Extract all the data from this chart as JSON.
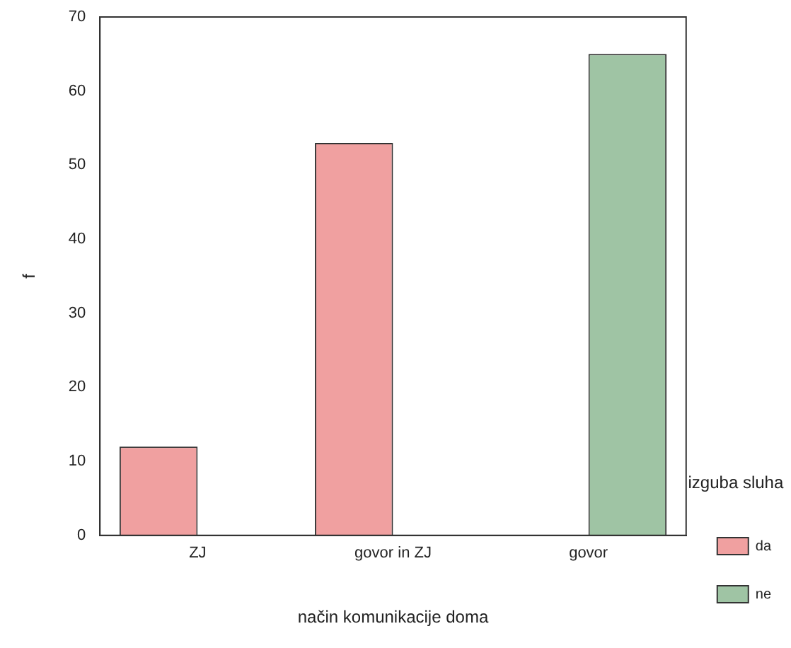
{
  "chart_data": {
    "type": "bar",
    "xlabel": "način komunikacije doma",
    "ylabel": "f",
    "legend_title": "izguba sluha",
    "legend": "right",
    "categories": [
      "ZJ",
      "govor in ZJ",
      "govor"
    ],
    "series": [
      {
        "name": "da",
        "color": "#f0a0a0",
        "values": [
          12,
          53,
          null
        ]
      },
      {
        "name": "ne",
        "color": "#9fc4a4",
        "values": [
          null,
          null,
          65
        ]
      }
    ],
    "ylim": [
      0,
      70
    ],
    "yticks": [
      0,
      10,
      20,
      30,
      40,
      50,
      60,
      70
    ],
    "grid": false
  }
}
